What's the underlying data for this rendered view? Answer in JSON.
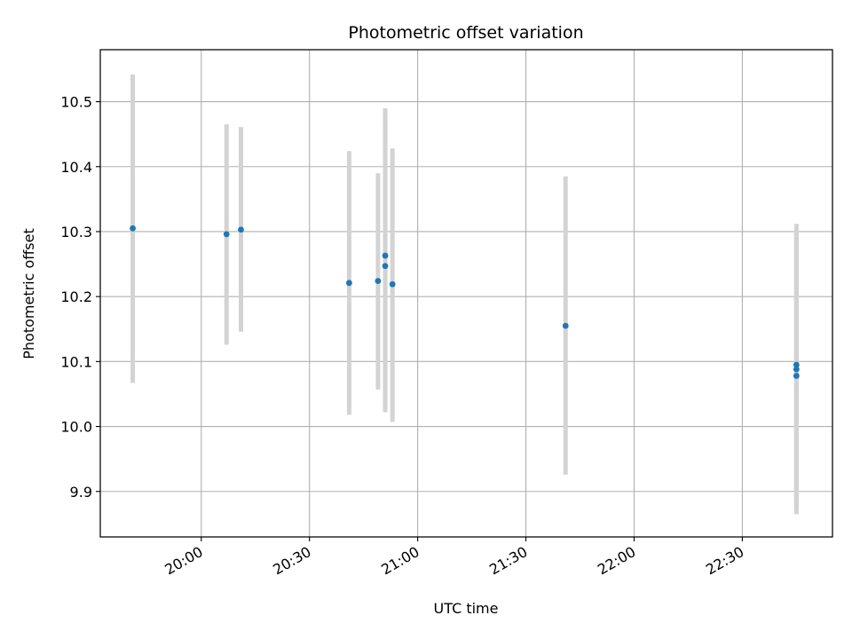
{
  "chart_data": {
    "type": "scatter",
    "title": "Photometric offset variation",
    "xlabel": "UTC time",
    "ylabel": "Photometric offset",
    "x_ticks": [
      "20:00",
      "20:30",
      "21:00",
      "21:30",
      "22:00",
      "22:30"
    ],
    "y_ticks": [
      "9.9",
      "10.0",
      "10.1",
      "10.2",
      "10.3",
      "10.4",
      "10.5"
    ],
    "xlim": [
      "19:32",
      "22:55"
    ],
    "ylim": [
      9.83,
      10.58
    ],
    "grid": true,
    "marker_color": "#1f77b4",
    "errorbar_color": "#d3d3d3",
    "points": [
      {
        "x": "19:41",
        "y": 10.305,
        "ylow": 10.067,
        "yhigh": 10.542
      },
      {
        "x": "20:07",
        "y": 10.296,
        "ylow": 10.126,
        "yhigh": 10.465
      },
      {
        "x": "20:11",
        "y": 10.303,
        "ylow": 10.146,
        "yhigh": 10.461
      },
      {
        "x": "20:41",
        "y": 10.221,
        "ylow": 10.018,
        "yhigh": 10.424
      },
      {
        "x": "20:49",
        "y": 10.224,
        "ylow": 10.057,
        "yhigh": 10.39
      },
      {
        "x": "20:51",
        "y": 10.247,
        "ylow": 10.022,
        "yhigh": 10.471
      },
      {
        "x": "20:51",
        "y": 10.263,
        "ylow": 10.036,
        "yhigh": 10.49
      },
      {
        "x": "20:53",
        "y": 10.219,
        "ylow": 10.007,
        "yhigh": 10.428
      },
      {
        "x": "21:41",
        "y": 10.155,
        "ylow": 9.926,
        "yhigh": 10.385
      },
      {
        "x": "22:45",
        "y": 10.095,
        "ylow": 9.88,
        "yhigh": 10.312
      },
      {
        "x": "22:45",
        "y": 10.088,
        "ylow": 9.872,
        "yhigh": 10.3
      },
      {
        "x": "22:45",
        "y": 10.078,
        "ylow": 9.865,
        "yhigh": 10.292
      }
    ]
  }
}
